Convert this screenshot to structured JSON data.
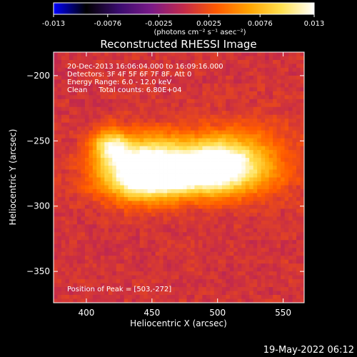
{
  "chart_data": {
    "type": "heatmap",
    "title": "Reconstructed RHESSI Image",
    "xlabel": "Heliocentric X (arcsec)",
    "ylabel": "Heliocentric Y (arcsec)",
    "xlim": [
      375,
      566
    ],
    "ylim": [
      -374,
      -182
    ],
    "xticks": [
      400,
      450,
      500,
      550
    ],
    "yticks": [
      -200,
      -250,
      -300,
      -350
    ],
    "colorbar": {
      "min": -0.013,
      "max": 0.013,
      "tick_values": [
        -0.013,
        -0.0076,
        -0.0025,
        0.0025,
        0.0076,
        0.013
      ],
      "tick_labels": [
        "-0.013",
        "-0.0076",
        "-0.0025",
        "0.0025",
        "0.0076",
        "0.013"
      ],
      "unit_label": "(photons cm⁻² s⁻¹ asec⁻²)",
      "colormap": [
        "#0000ff",
        "#000000",
        "#3a0c6e",
        "#7a1a88",
        "#c42a4a",
        "#ff5a00",
        "#ffa300",
        "#ffe050",
        "#ffffff"
      ]
    },
    "info_lines": [
      "20-Dec-2013 16:06:04.000 to 16:09:16.000",
      "Detectors: 3F 4F 5F 6F 7F 8F, Att 0",
      "Energy Range: 6.0 - 12.0 keV",
      "Clean     Total counts: 6.80E+04"
    ],
    "peak_label": "Position of Peak = [503,-272]",
    "sources": [
      {
        "x": 478,
        "y": -276,
        "peak": 0.0125,
        "sx": 36,
        "sy": 12
      },
      {
        "x": 440,
        "y": -276,
        "peak": 0.0095,
        "sx": 20,
        "sy": 14
      },
      {
        "x": 505,
        "y": -262,
        "peak": 0.009,
        "sx": 20,
        "sy": 14
      },
      {
        "x": 418,
        "y": -254,
        "peak": 0.0085,
        "sx": 10,
        "sy": 9
      },
      {
        "x": 452,
        "y": -258,
        "peak": 0.0055,
        "sx": 22,
        "sy": 12
      },
      {
        "x": 540,
        "y": -260,
        "peak": 0.0018,
        "sx": 18,
        "sy": 20
      }
    ],
    "background": 0.0007
  },
  "footer": {
    "timestamp": "19-May-2022 06:12"
  }
}
